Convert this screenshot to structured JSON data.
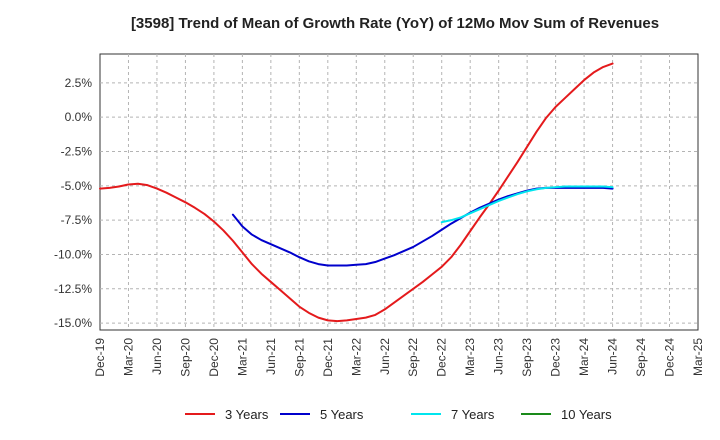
{
  "chart_data": {
    "type": "line",
    "title": "[3598]  Trend of Mean of Growth Rate (YoY) of 12Mo Mov Sum of Revenues",
    "xlabel": "",
    "ylabel": "",
    "ylim": [
      -15.5,
      4.6
    ],
    "grid": true,
    "legend_position": "bottom",
    "y_ticks": [
      2.5,
      0.0,
      -2.5,
      -5.0,
      -7.5,
      -10.0,
      -12.5,
      -15.0
    ],
    "y_tick_labels": [
      "2.5%",
      "0.0%",
      "-2.5%",
      "-5.0%",
      "-7.5%",
      "-10.0%",
      "-12.5%",
      "-15.0%"
    ],
    "x_tick_labels": [
      "Dec-19",
      "Mar-20",
      "Jun-20",
      "Sep-20",
      "Dec-20",
      "Mar-21",
      "Jun-21",
      "Sep-21",
      "Dec-21",
      "Mar-22",
      "Jun-22",
      "Sep-22",
      "Dec-22",
      "Mar-23",
      "Jun-23",
      "Sep-23",
      "Dec-23",
      "Mar-24",
      "Jun-24",
      "Sep-24",
      "Dec-24",
      "Mar-25"
    ],
    "series": [
      {
        "name": "3 Years",
        "color": "#e41a1c",
        "start_index": 0,
        "values": [
          -5.2,
          -5.15,
          -5.05,
          -4.9,
          -4.85,
          -4.95,
          -5.2,
          -5.5,
          -5.85,
          -6.2,
          -6.6,
          -7.05,
          -7.6,
          -8.25,
          -9.0,
          -9.85,
          -10.7,
          -11.4,
          -12.0,
          -12.6,
          -13.2,
          -13.8,
          -14.25,
          -14.6,
          -14.8,
          -14.85,
          -14.8,
          -14.7,
          -14.6,
          -14.4,
          -14.0,
          -13.5,
          -13.0,
          -12.5,
          -12.0,
          -11.45,
          -10.9,
          -10.2,
          -9.3,
          -8.3,
          -7.3,
          -6.35,
          -5.35,
          -4.3,
          -3.25,
          -2.15,
          -1.05,
          -0.05,
          0.75,
          1.4,
          2.05,
          2.7,
          3.25,
          3.65,
          3.9
        ]
      },
      {
        "name": "5 Years",
        "color": "#0000cc",
        "start_index": 14,
        "values": [
          -7.1,
          -7.95,
          -8.55,
          -8.95,
          -9.25,
          -9.55,
          -9.85,
          -10.2,
          -10.5,
          -10.7,
          -10.8,
          -10.8,
          -10.8,
          -10.75,
          -10.7,
          -10.55,
          -10.3,
          -10.05,
          -9.75,
          -9.45,
          -9.05,
          -8.65,
          -8.2,
          -7.75,
          -7.35,
          -6.95,
          -6.6,
          -6.3,
          -6.0,
          -5.75,
          -5.55,
          -5.35,
          -5.2,
          -5.15,
          -5.15,
          -5.15,
          -5.15,
          -5.15,
          -5.15,
          -5.15,
          -5.2
        ]
      },
      {
        "name": "7 Years",
        "color": "#00e5ee",
        "start_index": 36,
        "values": [
          -7.65,
          -7.5,
          -7.3,
          -7.0,
          -6.7,
          -6.4,
          -6.1,
          -5.85,
          -5.6,
          -5.4,
          -5.25,
          -5.15,
          -5.1,
          -5.05,
          -5.05,
          -5.05,
          -5.05,
          -5.05,
          -5.1
        ]
      },
      {
        "name": "10 Years",
        "color": "#1a8a1a",
        "start_index": 0,
        "values": []
      }
    ]
  }
}
